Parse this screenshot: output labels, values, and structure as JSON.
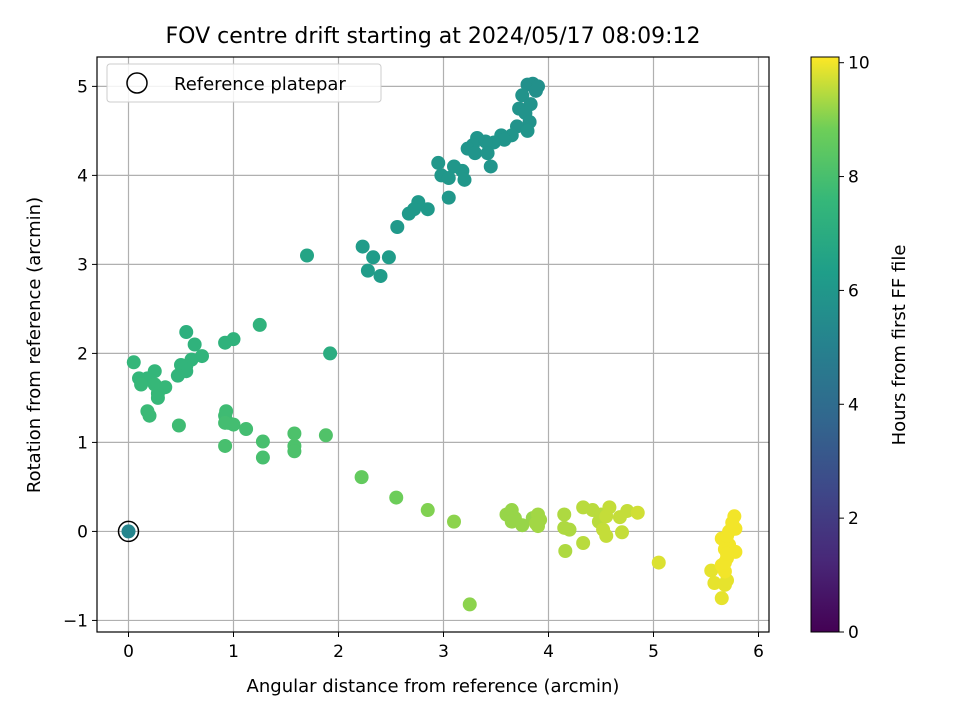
{
  "chart_data": {
    "type": "scatter",
    "title": "FOV centre drift starting at 2024/05/17 08:09:12",
    "xlabel": "Angular distance from reference (arcmin)",
    "ylabel": "Rotation from reference (arcmin)",
    "xlim": [
      -0.3,
      6.1
    ],
    "ylim": [
      -1.13,
      5.33
    ],
    "x_ticks": [
      0,
      1,
      2,
      3,
      4,
      5,
      6
    ],
    "y_ticks": [
      -1,
      0,
      1,
      2,
      3,
      4,
      5
    ],
    "grid": true,
    "legend": {
      "position": "top-left",
      "entries": [
        "Reference platepar"
      ]
    },
    "colorbar": {
      "label": "Hours from first FF file",
      "range": [
        0,
        10.1
      ],
      "ticks": [
        0,
        2,
        4,
        6,
        8,
        10
      ],
      "colormap": "viridis"
    },
    "reference_point": {
      "x": 0,
      "y": 0,
      "label": "Reference platepar"
    },
    "points": [
      {
        "x": 0.0,
        "y": 0.0,
        "c": 5.2
      },
      {
        "x": 3.8,
        "y": 5.02,
        "c": 5.7
      },
      {
        "x": 3.85,
        "y": 5.03,
        "c": 5.7
      },
      {
        "x": 3.9,
        "y": 5.0,
        "c": 5.7
      },
      {
        "x": 3.88,
        "y": 4.95,
        "c": 5.7
      },
      {
        "x": 3.75,
        "y": 4.9,
        "c": 5.8
      },
      {
        "x": 3.83,
        "y": 4.8,
        "c": 5.8
      },
      {
        "x": 3.72,
        "y": 4.75,
        "c": 5.8
      },
      {
        "x": 3.78,
        "y": 4.7,
        "c": 5.8
      },
      {
        "x": 3.82,
        "y": 4.6,
        "c": 5.8
      },
      {
        "x": 3.7,
        "y": 4.55,
        "c": 5.8
      },
      {
        "x": 3.65,
        "y": 4.45,
        "c": 5.9
      },
      {
        "x": 3.8,
        "y": 4.5,
        "c": 5.9
      },
      {
        "x": 3.55,
        "y": 4.45,
        "c": 5.9
      },
      {
        "x": 3.58,
        "y": 4.4,
        "c": 5.9
      },
      {
        "x": 3.48,
        "y": 4.37,
        "c": 5.9
      },
      {
        "x": 3.4,
        "y": 4.38,
        "c": 5.9
      },
      {
        "x": 3.32,
        "y": 4.42,
        "c": 5.9
      },
      {
        "x": 3.28,
        "y": 4.34,
        "c": 5.9
      },
      {
        "x": 3.23,
        "y": 4.3,
        "c": 5.9
      },
      {
        "x": 3.3,
        "y": 4.25,
        "c": 5.9
      },
      {
        "x": 3.42,
        "y": 4.25,
        "c": 5.9
      },
      {
        "x": 3.45,
        "y": 4.1,
        "c": 5.9
      },
      {
        "x": 3.18,
        "y": 4.05,
        "c": 6.0
      },
      {
        "x": 3.1,
        "y": 4.1,
        "c": 6.0
      },
      {
        "x": 3.2,
        "y": 3.95,
        "c": 6.0
      },
      {
        "x": 2.98,
        "y": 4.0,
        "c": 6.0
      },
      {
        "x": 3.05,
        "y": 3.97,
        "c": 6.0
      },
      {
        "x": 2.95,
        "y": 4.14,
        "c": 6.0
      },
      {
        "x": 3.05,
        "y": 3.75,
        "c": 6.0
      },
      {
        "x": 2.85,
        "y": 3.62,
        "c": 6.1
      },
      {
        "x": 2.76,
        "y": 3.7,
        "c": 6.1
      },
      {
        "x": 2.72,
        "y": 3.62,
        "c": 6.1
      },
      {
        "x": 2.67,
        "y": 3.57,
        "c": 6.1
      },
      {
        "x": 2.56,
        "y": 3.42,
        "c": 6.1
      },
      {
        "x": 2.23,
        "y": 3.2,
        "c": 6.2
      },
      {
        "x": 2.33,
        "y": 3.08,
        "c": 6.2
      },
      {
        "x": 2.48,
        "y": 3.08,
        "c": 6.2
      },
      {
        "x": 2.28,
        "y": 2.93,
        "c": 6.2
      },
      {
        "x": 2.4,
        "y": 2.87,
        "c": 6.2
      },
      {
        "x": 1.7,
        "y": 3.1,
        "c": 6.6
      },
      {
        "x": 1.92,
        "y": 2.0,
        "c": 7.0
      },
      {
        "x": 1.25,
        "y": 2.32,
        "c": 7.3
      },
      {
        "x": 0.55,
        "y": 2.24,
        "c": 7.2
      },
      {
        "x": 0.63,
        "y": 2.1,
        "c": 7.3
      },
      {
        "x": 0.92,
        "y": 2.12,
        "c": 7.3
      },
      {
        "x": 1.0,
        "y": 2.16,
        "c": 7.3
      },
      {
        "x": 0.7,
        "y": 1.97,
        "c": 7.4
      },
      {
        "x": 0.6,
        "y": 1.93,
        "c": 7.4
      },
      {
        "x": 0.55,
        "y": 1.86,
        "c": 7.4
      },
      {
        "x": 0.5,
        "y": 1.87,
        "c": 7.4
      },
      {
        "x": 0.55,
        "y": 1.8,
        "c": 7.4
      },
      {
        "x": 0.47,
        "y": 1.75,
        "c": 7.4
      },
      {
        "x": 0.05,
        "y": 1.9,
        "c": 7.5
      },
      {
        "x": 0.25,
        "y": 1.8,
        "c": 7.5
      },
      {
        "x": 0.18,
        "y": 1.72,
        "c": 7.5
      },
      {
        "x": 0.1,
        "y": 1.72,
        "c": 7.5
      },
      {
        "x": 0.12,
        "y": 1.65,
        "c": 7.6
      },
      {
        "x": 0.25,
        "y": 1.65,
        "c": 7.6
      },
      {
        "x": 0.35,
        "y": 1.62,
        "c": 7.6
      },
      {
        "x": 0.28,
        "y": 1.55,
        "c": 7.6
      },
      {
        "x": 0.28,
        "y": 1.5,
        "c": 7.6
      },
      {
        "x": 0.18,
        "y": 1.35,
        "c": 7.7
      },
      {
        "x": 0.2,
        "y": 1.3,
        "c": 7.7
      },
      {
        "x": 0.48,
        "y": 1.19,
        "c": 7.8
      },
      {
        "x": 0.93,
        "y": 1.35,
        "c": 7.8
      },
      {
        "x": 0.92,
        "y": 1.3,
        "c": 7.8
      },
      {
        "x": 0.95,
        "y": 1.22,
        "c": 7.8
      },
      {
        "x": 1.0,
        "y": 1.2,
        "c": 7.9
      },
      {
        "x": 0.92,
        "y": 1.22,
        "c": 7.9
      },
      {
        "x": 1.12,
        "y": 1.15,
        "c": 7.9
      },
      {
        "x": 0.92,
        "y": 0.96,
        "c": 8.0
      },
      {
        "x": 1.28,
        "y": 1.01,
        "c": 8.0
      },
      {
        "x": 1.28,
        "y": 0.83,
        "c": 8.0
      },
      {
        "x": 1.58,
        "y": 1.1,
        "c": 8.1
      },
      {
        "x": 1.58,
        "y": 0.96,
        "c": 8.1
      },
      {
        "x": 1.58,
        "y": 0.9,
        "c": 8.1
      },
      {
        "x": 1.88,
        "y": 1.08,
        "c": 8.2
      },
      {
        "x": 2.22,
        "y": 0.61,
        "c": 8.6
      },
      {
        "x": 2.55,
        "y": 0.38,
        "c": 8.8
      },
      {
        "x": 2.85,
        "y": 0.24,
        "c": 9.0
      },
      {
        "x": 3.1,
        "y": 0.11,
        "c": 9.1
      },
      {
        "x": 3.25,
        "y": -0.82,
        "c": 9.1
      },
      {
        "x": 3.6,
        "y": 0.19,
        "c": 9.2
      },
      {
        "x": 3.65,
        "y": 0.24,
        "c": 9.2
      },
      {
        "x": 3.68,
        "y": 0.15,
        "c": 9.2
      },
      {
        "x": 3.65,
        "y": 0.11,
        "c": 9.2
      },
      {
        "x": 3.75,
        "y": 0.07,
        "c": 9.2
      },
      {
        "x": 3.85,
        "y": 0.15,
        "c": 9.2
      },
      {
        "x": 3.9,
        "y": 0.19,
        "c": 9.3
      },
      {
        "x": 3.92,
        "y": 0.13,
        "c": 9.3
      },
      {
        "x": 3.9,
        "y": 0.06,
        "c": 9.3
      },
      {
        "x": 3.88,
        "y": 0.09,
        "c": 9.3
      },
      {
        "x": 4.15,
        "y": 0.19,
        "c": 9.4
      },
      {
        "x": 4.15,
        "y": 0.04,
        "c": 9.4
      },
      {
        "x": 4.2,
        "y": 0.02,
        "c": 9.4
      },
      {
        "x": 4.16,
        "y": -0.22,
        "c": 9.4
      },
      {
        "x": 4.33,
        "y": 0.27,
        "c": 9.5
      },
      {
        "x": 4.42,
        "y": 0.24,
        "c": 9.5
      },
      {
        "x": 4.33,
        "y": -0.13,
        "c": 9.5
      },
      {
        "x": 4.5,
        "y": 0.19,
        "c": 9.5
      },
      {
        "x": 4.48,
        "y": 0.11,
        "c": 9.5
      },
      {
        "x": 4.55,
        "y": 0.17,
        "c": 9.6
      },
      {
        "x": 4.58,
        "y": 0.27,
        "c": 9.6
      },
      {
        "x": 4.52,
        "y": 0.02,
        "c": 9.6
      },
      {
        "x": 4.55,
        "y": -0.05,
        "c": 9.6
      },
      {
        "x": 4.68,
        "y": 0.16,
        "c": 9.6
      },
      {
        "x": 4.75,
        "y": 0.23,
        "c": 9.6
      },
      {
        "x": 4.7,
        "y": -0.01,
        "c": 9.6
      },
      {
        "x": 4.85,
        "y": 0.21,
        "c": 9.7
      },
      {
        "x": 5.05,
        "y": -0.35,
        "c": 9.8
      },
      {
        "x": 5.55,
        "y": -0.44,
        "c": 9.9
      },
      {
        "x": 5.58,
        "y": -0.58,
        "c": 9.9
      },
      {
        "x": 5.65,
        "y": -0.75,
        "c": 9.9
      },
      {
        "x": 5.68,
        "y": -0.6,
        "c": 9.9
      },
      {
        "x": 5.7,
        "y": -0.55,
        "c": 9.9
      },
      {
        "x": 5.68,
        "y": -0.45,
        "c": 10.0
      },
      {
        "x": 5.65,
        "y": -0.38,
        "c": 10.0
      },
      {
        "x": 5.7,
        "y": -0.3,
        "c": 10.0
      },
      {
        "x": 5.68,
        "y": -0.2,
        "c": 10.0
      },
      {
        "x": 5.72,
        "y": -0.15,
        "c": 10.0
      },
      {
        "x": 5.65,
        "y": -0.08,
        "c": 10.0
      },
      {
        "x": 5.7,
        "y": -0.05,
        "c": 10.0
      },
      {
        "x": 5.78,
        "y": -0.23,
        "c": 10.0
      },
      {
        "x": 5.75,
        "y": -0.22,
        "c": 10.0
      },
      {
        "x": 5.72,
        "y": 0.0,
        "c": 10.0
      },
      {
        "x": 5.78,
        "y": 0.03,
        "c": 10.0
      },
      {
        "x": 5.75,
        "y": 0.1,
        "c": 10.0
      },
      {
        "x": 5.77,
        "y": 0.17,
        "c": 10.0
      },
      {
        "x": 5.68,
        "y": -0.35,
        "c": 10.0
      },
      {
        "x": 5.7,
        "y": -0.25,
        "c": 10.0
      }
    ]
  }
}
